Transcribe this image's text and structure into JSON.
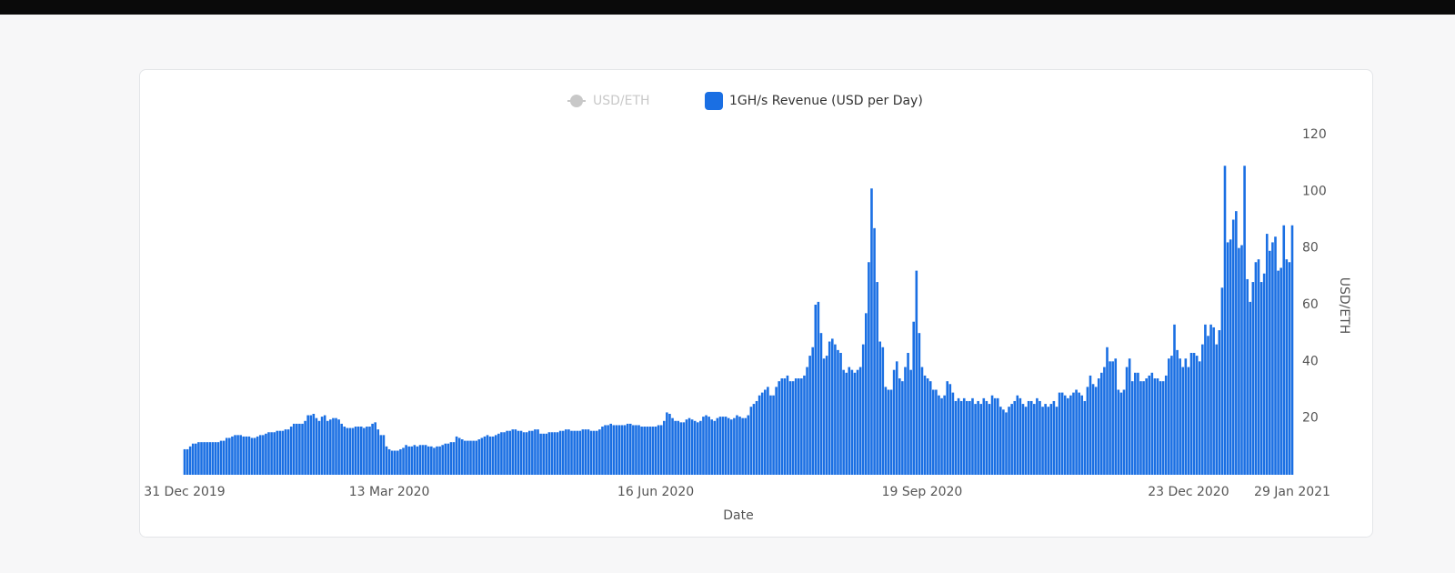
{
  "chart_data": {
    "type": "bar",
    "legend": [
      {
        "name": "USD/ETH",
        "color": "#c8c8c8",
        "hidden": true
      }
    ],
    "x_label": "Date",
    "y_label": "USD/ETH",
    "categories": [
      "31 Dec 2019",
      null,
      null,
      null,
      null,
      null,
      null,
      null,
      null,
      null,
      null,
      null,
      null,
      null,
      null,
      null,
      null,
      null,
      null,
      null,
      null,
      null,
      null,
      null,
      null,
      null,
      null,
      null,
      null,
      null,
      null,
      null,
      null,
      null,
      null,
      null,
      null,
      null,
      null,
      null,
      null,
      null,
      null,
      null,
      null,
      null,
      null,
      null,
      null,
      null,
      null,
      null,
      null,
      null,
      null,
      null,
      null,
      null,
      null,
      null,
      null,
      null,
      null,
      null,
      null,
      null,
      null,
      null,
      null,
      null,
      null,
      null,
      null,
      "13 Mar 2020",
      null,
      null,
      null,
      null,
      null,
      null,
      null,
      null,
      null,
      null,
      null,
      null,
      null,
      null,
      null,
      null,
      null,
      null,
      null,
      null,
      null,
      null,
      null,
      null,
      null,
      null,
      null,
      null,
      null,
      null,
      null,
      null,
      null,
      null,
      null,
      null,
      null,
      null,
      null,
      null,
      null,
      null,
      null,
      null,
      null,
      null,
      null,
      null,
      null,
      null,
      null,
      null,
      null,
      null,
      null,
      null,
      null,
      null,
      null,
      null,
      null,
      null,
      null,
      null,
      null,
      null,
      null,
      null,
      null,
      null,
      null,
      null,
      null,
      null,
      null,
      null,
      null,
      null,
      null,
      null,
      null,
      null,
      null,
      null,
      null,
      null,
      null,
      null,
      null,
      null,
      null,
      null,
      null,
      null,
      "16 Jun 2020",
      null,
      null,
      null,
      null,
      null,
      null,
      null,
      null,
      null,
      null,
      null,
      null,
      null,
      null,
      null,
      null,
      null,
      null,
      null,
      null,
      null,
      null,
      null,
      null,
      null,
      null,
      null,
      null,
      null,
      null,
      null,
      null,
      null,
      null,
      null,
      null,
      null,
      null,
      null,
      null,
      null,
      null,
      null,
      null,
      null,
      null,
      null,
      null,
      null,
      null,
      null,
      null,
      null,
      null,
      null,
      null,
      null,
      null,
      null,
      null,
      null,
      null,
      null,
      null,
      null,
      null,
      null,
      null,
      null,
      null,
      null,
      null,
      null,
      null,
      null,
      null,
      null,
      null,
      null,
      null,
      null,
      null,
      null,
      null,
      null,
      null,
      null,
      null,
      null,
      null,
      null,
      null,
      null,
      null,
      "19 Sep 2020",
      null,
      null,
      null,
      null,
      null,
      null,
      null,
      null,
      null,
      null,
      null,
      null,
      null,
      null,
      null,
      null,
      null,
      null,
      null,
      null,
      null,
      null,
      null,
      null,
      null,
      null,
      null,
      null,
      null,
      null,
      null,
      null,
      null,
      null,
      null,
      null,
      null,
      null,
      null,
      null,
      null,
      null,
      null,
      null,
      null,
      null,
      null,
      null,
      null,
      null,
      null,
      null,
      null,
      null,
      null,
      null,
      null,
      null,
      null,
      null,
      null,
      null,
      null,
      null,
      null,
      null,
      null,
      null,
      null,
      null,
      null,
      null,
      null,
      null,
      null,
      null,
      null,
      null,
      null,
      null,
      null,
      null,
      null,
      null,
      null,
      null,
      null,
      null,
      null,
      null,
      null,
      null,
      null,
      null,
      "23 Dec 2020",
      null,
      null,
      null,
      null,
      null,
      null,
      null,
      null,
      null,
      null,
      null,
      null,
      null,
      null,
      null,
      null,
      null,
      null,
      null,
      null,
      null,
      null,
      null,
      null,
      null,
      null,
      null,
      null,
      null,
      null,
      null,
      null,
      null,
      null,
      null,
      null,
      "29 Jan 2021"
    ],
    "series": [
      {
        "name": "1GH/s Revenue (USD per Day)",
        "color": "#1a6fe3",
        "values": [
          9,
          9,
          10,
          11,
          11,
          11.5,
          11.5,
          11.5,
          11.5,
          11.5,
          11.5,
          11.5,
          11.5,
          12,
          12,
          13,
          13,
          13.5,
          14,
          14,
          14,
          13.5,
          13.5,
          13.5,
          13,
          13,
          13.5,
          14,
          14,
          14.5,
          15,
          15,
          15,
          15.5,
          15.5,
          15.5,
          16,
          16,
          17,
          18,
          18,
          18,
          18,
          19,
          21,
          21,
          21.5,
          20,
          19,
          20.5,
          21,
          19,
          19.5,
          20,
          20,
          19.5,
          18,
          17,
          16.5,
          16.5,
          16.5,
          17,
          17,
          17,
          16.5,
          17,
          17,
          18,
          18.5,
          16,
          14,
          14,
          10,
          9,
          8.5,
          8.5,
          8.5,
          9,
          9.5,
          10.5,
          10,
          10,
          10.5,
          10,
          10.5,
          10.5,
          10.5,
          10,
          10,
          9.5,
          10,
          10,
          10.5,
          11,
          11,
          11.5,
          11.5,
          13.5,
          13,
          12.5,
          12,
          12,
          12,
          12,
          12,
          12.5,
          13,
          13.5,
          14,
          13.5,
          13.5,
          14,
          14.5,
          15,
          15,
          15.5,
          15.5,
          16,
          16,
          15.5,
          15.5,
          15,
          15,
          15.5,
          15.5,
          16,
          16,
          14.5,
          14.5,
          14.5,
          15,
          15,
          15,
          15,
          15.5,
          15.5,
          16,
          16,
          15.5,
          15.5,
          15.5,
          15.5,
          16,
          16,
          16,
          15.5,
          15.5,
          15.5,
          16,
          17,
          17.5,
          17.5,
          18,
          17.5,
          17.5,
          17.5,
          17.5,
          17.5,
          18,
          18,
          17.5,
          17.5,
          17.5,
          17,
          17,
          17,
          17,
          17,
          17,
          17.5,
          17.5,
          19,
          22,
          21.5,
          20,
          19,
          19,
          18.5,
          18.5,
          19.5,
          20,
          19.5,
          19,
          18.5,
          19,
          20.5,
          21,
          20.5,
          19.5,
          19,
          20,
          20.5,
          20.5,
          20.5,
          20,
          19.5,
          20,
          21,
          20.5,
          20,
          20,
          21,
          24,
          25,
          26,
          28,
          29,
          30,
          31,
          28,
          28,
          31,
          33,
          34,
          34,
          35,
          33,
          33,
          34,
          34,
          34,
          35,
          38,
          42,
          45,
          60,
          61,
          50,
          41,
          42,
          47,
          48,
          46,
          44,
          43,
          37,
          36,
          38,
          37,
          36,
          37,
          38,
          46,
          57,
          75,
          101,
          87,
          68,
          47,
          45,
          31,
          30,
          30,
          37,
          40,
          34,
          33,
          38,
          43,
          37,
          54,
          72,
          50,
          38,
          35,
          34,
          33,
          30,
          30,
          28,
          27,
          28,
          33,
          32,
          29,
          26,
          27,
          26,
          27,
          26,
          26,
          27,
          25,
          26,
          25,
          27,
          26,
          25,
          28,
          27,
          27,
          24,
          23,
          22,
          24,
          25,
          26,
          28,
          27,
          25,
          24,
          26,
          26,
          25,
          27,
          26,
          24,
          25,
          24,
          25,
          26,
          24,
          29,
          29,
          28,
          27,
          28,
          29,
          30,
          29,
          28,
          26,
          31,
          35,
          32,
          31,
          34,
          36,
          38,
          45,
          40,
          40,
          41,
          30,
          29,
          30,
          38,
          41,
          33,
          36,
          36,
          33,
          33,
          34,
          35,
          36,
          34,
          34,
          33,
          33,
          35,
          41,
          42,
          53,
          44,
          41,
          38,
          41,
          38,
          43,
          43,
          42,
          40,
          46,
          53,
          49,
          53,
          52,
          46,
          51,
          66,
          109,
          82,
          83,
          90,
          93,
          80,
          81,
          109,
          69,
          61,
          68,
          75,
          76,
          68,
          71,
          85,
          79,
          82,
          84,
          72,
          73,
          88,
          76,
          75,
          88
        ]
      }
    ],
    "ylim": [
      0,
      120
    ],
    "yticks": [
      20,
      40,
      60,
      80,
      100,
      120
    ],
    "grid": false
  }
}
